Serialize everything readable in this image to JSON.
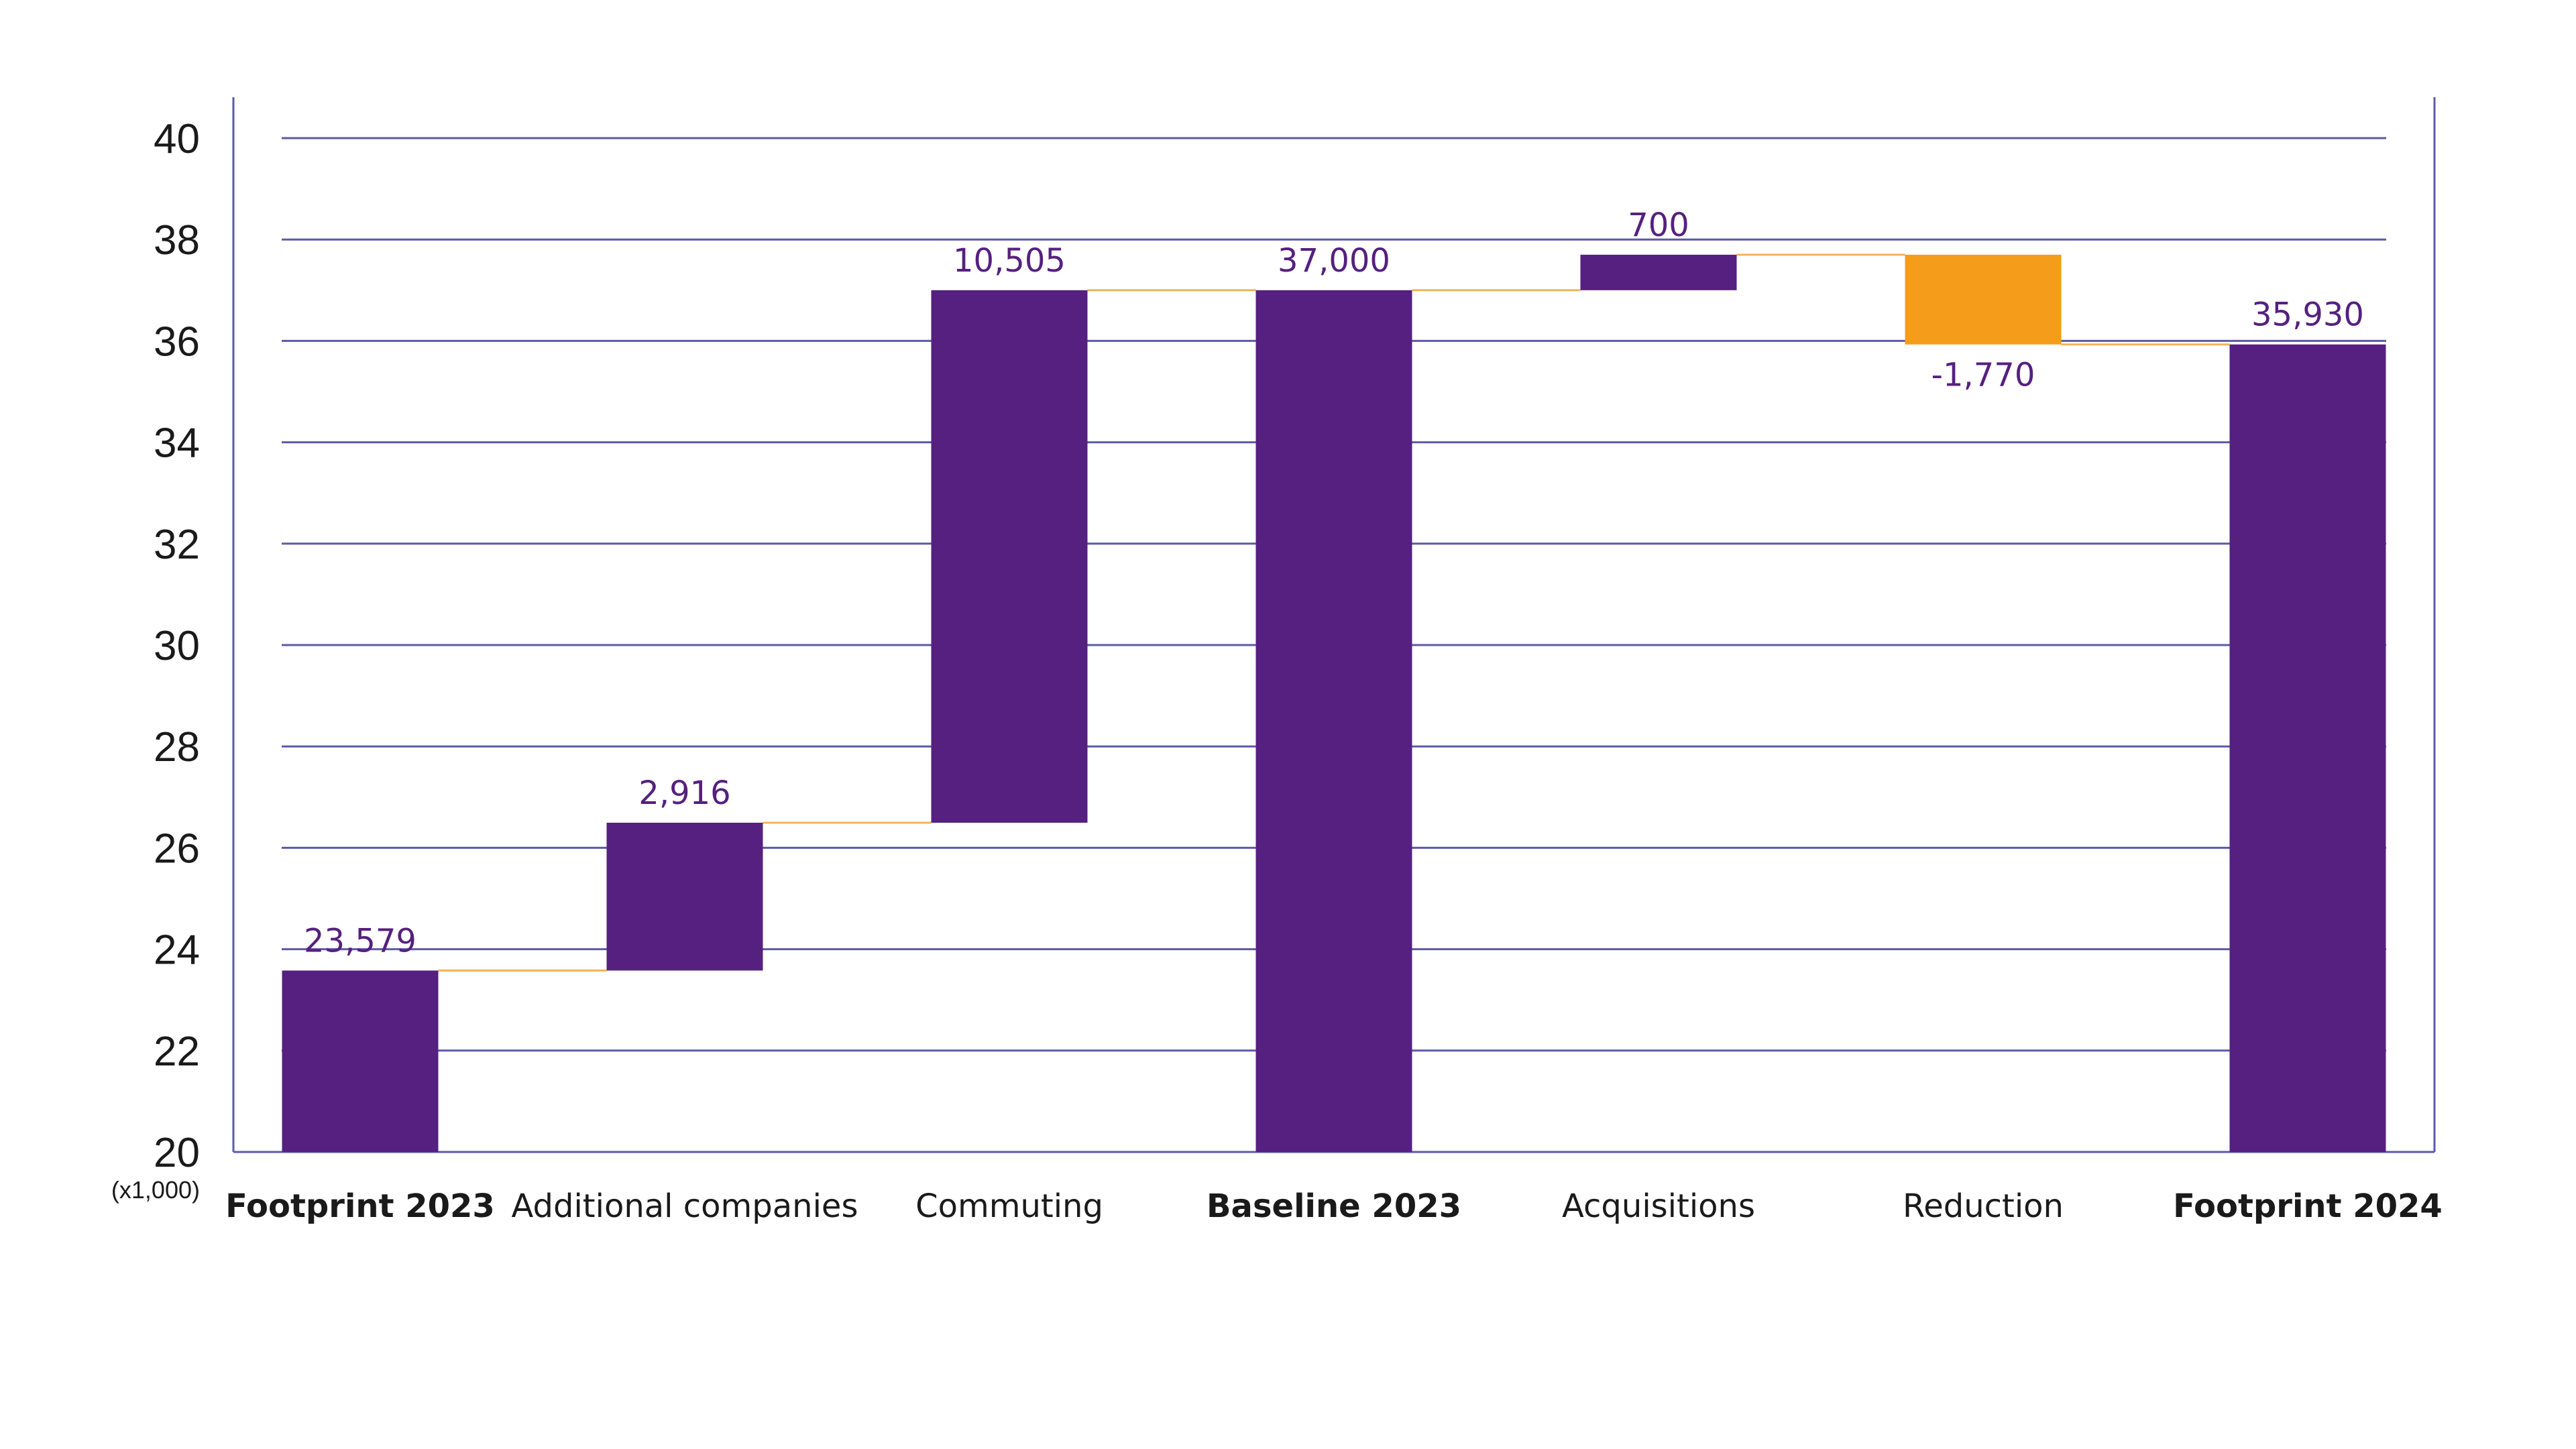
{
  "chart_data": {
    "type": "bar",
    "subtype": "waterfall",
    "y_unit": "(x1,000)",
    "ylim": [
      20,
      40
    ],
    "yticks": [
      "20",
      "22",
      "24",
      "26",
      "28",
      "30",
      "32",
      "34",
      "36",
      "38",
      "40"
    ],
    "grid": true,
    "legend": "none",
    "colors": {
      "total": "#55207f",
      "increase": "#55207f",
      "decrease": "#f59c1a",
      "connector": "#f5b354",
      "grid": "#5c5aa8"
    },
    "bars": [
      {
        "category": "Footprint 2023",
        "kind": "total",
        "start": 20,
        "end": 23.579,
        "label": "23,579",
        "bold": true
      },
      {
        "category": "Additional companies",
        "kind": "increase",
        "start": 23.579,
        "end": 26.495,
        "label": "2,916",
        "bold": false
      },
      {
        "category": "Commuting",
        "kind": "increase",
        "start": 26.495,
        "end": 37.0,
        "label": "10,505",
        "bold": false
      },
      {
        "category": "Baseline 2023",
        "kind": "total",
        "start": 20,
        "end": 37.0,
        "label": "37,000",
        "bold": true
      },
      {
        "category": "Acquisitions",
        "kind": "increase",
        "start": 37.0,
        "end": 37.7,
        "label": "700",
        "bold": false
      },
      {
        "category": "Reduction",
        "kind": "decrease",
        "start": 37.7,
        "end": 35.93,
        "label": "-1,770",
        "bold": false
      },
      {
        "category": "Footprint 2024",
        "kind": "total",
        "start": 20,
        "end": 35.93,
        "label": "35,930",
        "bold": true
      }
    ]
  }
}
